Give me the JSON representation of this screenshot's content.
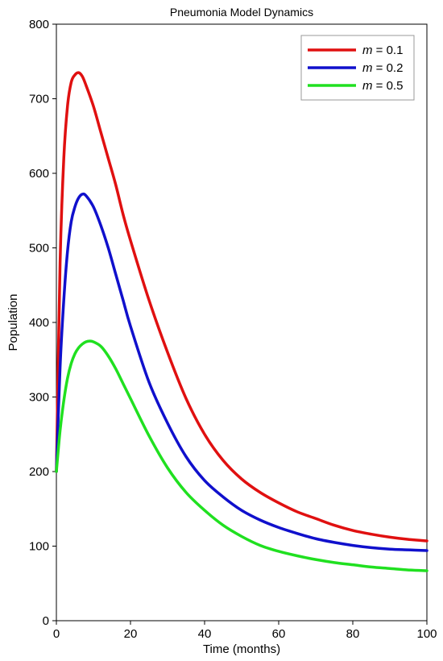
{
  "chart_data": {
    "type": "line",
    "title": "Pneumonia Model Dynamics",
    "xlabel": "Time (months)",
    "ylabel": "Population",
    "xlim": [
      0,
      100
    ],
    "ylim": [
      0,
      800
    ],
    "xticks": [
      0,
      20,
      40,
      60,
      80,
      100
    ],
    "yticks": [
      0,
      100,
      200,
      300,
      400,
      500,
      600,
      700,
      800
    ],
    "grid": false,
    "legend_position": "top-right",
    "series": [
      {
        "name": "m = 0.1",
        "legend_var": "m",
        "legend_rest": " = 0.1",
        "color": "#e01010",
        "x": [
          0,
          1,
          2,
          3,
          4,
          5,
          6,
          7,
          8,
          10,
          12,
          14,
          16,
          18,
          20,
          25,
          30,
          35,
          40,
          45,
          50,
          55,
          60,
          65,
          70,
          75,
          80,
          85,
          90,
          95,
          100
        ],
        "y": [
          200,
          480,
          620,
          690,
          722,
          732,
          735,
          730,
          718,
          690,
          655,
          620,
          585,
          545,
          510,
          430,
          360,
          298,
          250,
          215,
          190,
          172,
          158,
          146,
          137,
          128,
          121,
          116,
          112,
          109,
          107
        ]
      },
      {
        "name": "m = 0.2",
        "legend_var": "m",
        "legend_rest": " = 0.2",
        "color": "#1010cc",
        "x": [
          0,
          1,
          2,
          3,
          4,
          5,
          6,
          7,
          8,
          10,
          12,
          14,
          16,
          18,
          20,
          25,
          30,
          35,
          40,
          45,
          50,
          55,
          60,
          65,
          70,
          75,
          80,
          85,
          90,
          95,
          100
        ],
        "y": [
          200,
          340,
          430,
          495,
          535,
          555,
          567,
          572,
          570,
          555,
          530,
          500,
          465,
          430,
          395,
          320,
          265,
          220,
          188,
          166,
          148,
          135,
          125,
          117,
          110,
          105,
          101,
          98,
          96,
          95,
          94
        ]
      },
      {
        "name": "m = 0.5",
        "legend_var": "m",
        "legend_rest": " = 0.5",
        "color": "#20e020",
        "x": [
          0,
          1,
          2,
          3,
          4,
          5,
          6,
          7,
          8,
          9,
          10,
          12,
          14,
          16,
          18,
          20,
          25,
          30,
          35,
          40,
          45,
          50,
          55,
          60,
          65,
          70,
          75,
          80,
          85,
          90,
          95,
          100
        ],
        "y": [
          200,
          255,
          295,
          325,
          345,
          358,
          366,
          371,
          374,
          375,
          374,
          368,
          355,
          338,
          318,
          298,
          248,
          205,
          172,
          148,
          128,
          113,
          101,
          93,
          87,
          82,
          78,
          75,
          72,
          70,
          68,
          67
        ]
      }
    ]
  }
}
